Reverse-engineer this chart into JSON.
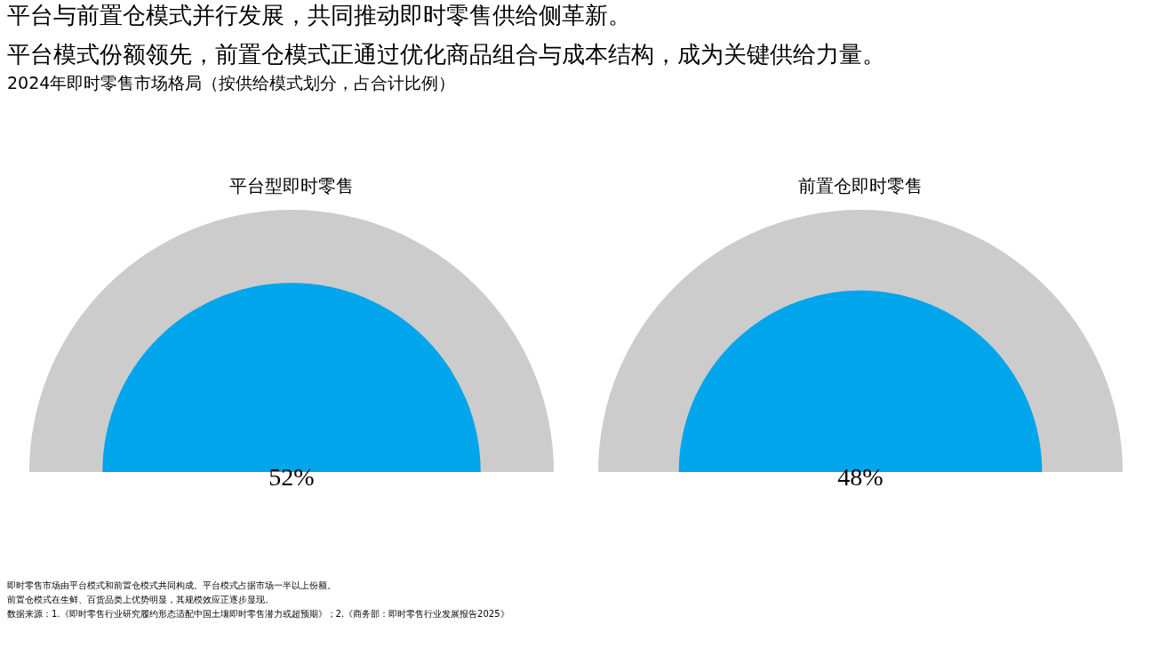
{
  "chart_data": {
    "type": "other",
    "title": "平台与前置仓模式并行发展，共同推动即时零售供给侧革新。",
    "subtitle": "平台模式份额领先，前置仓模式正通过优化商品组合与成本结构，成为关键供给力量。",
    "categories": [
      "平台型即时零售",
      "前置仓即时零售"
    ],
    "values": [
      52,
      48
    ],
    "value_labels": [
      "52%",
      "48%"
    ],
    "color": "#00a5ec",
    "annotations": [
      "2024年即时零售市场格局（按供给模式划分，占合计比例）",
      "即时零售市场由平台模式和前置仓模式共同构成。平台模式占据市场一半以上份额。",
      "前置仓模式在生鲜、百货品类上优势明显，其规模效应正逐步显现。",
      "数据来源：1.《即时零售行业研究履约形态适配中国土壤即时零售潜力或超预期》；2.《商务部：即时零售行业发展报告2025》"
    ]
  }
}
